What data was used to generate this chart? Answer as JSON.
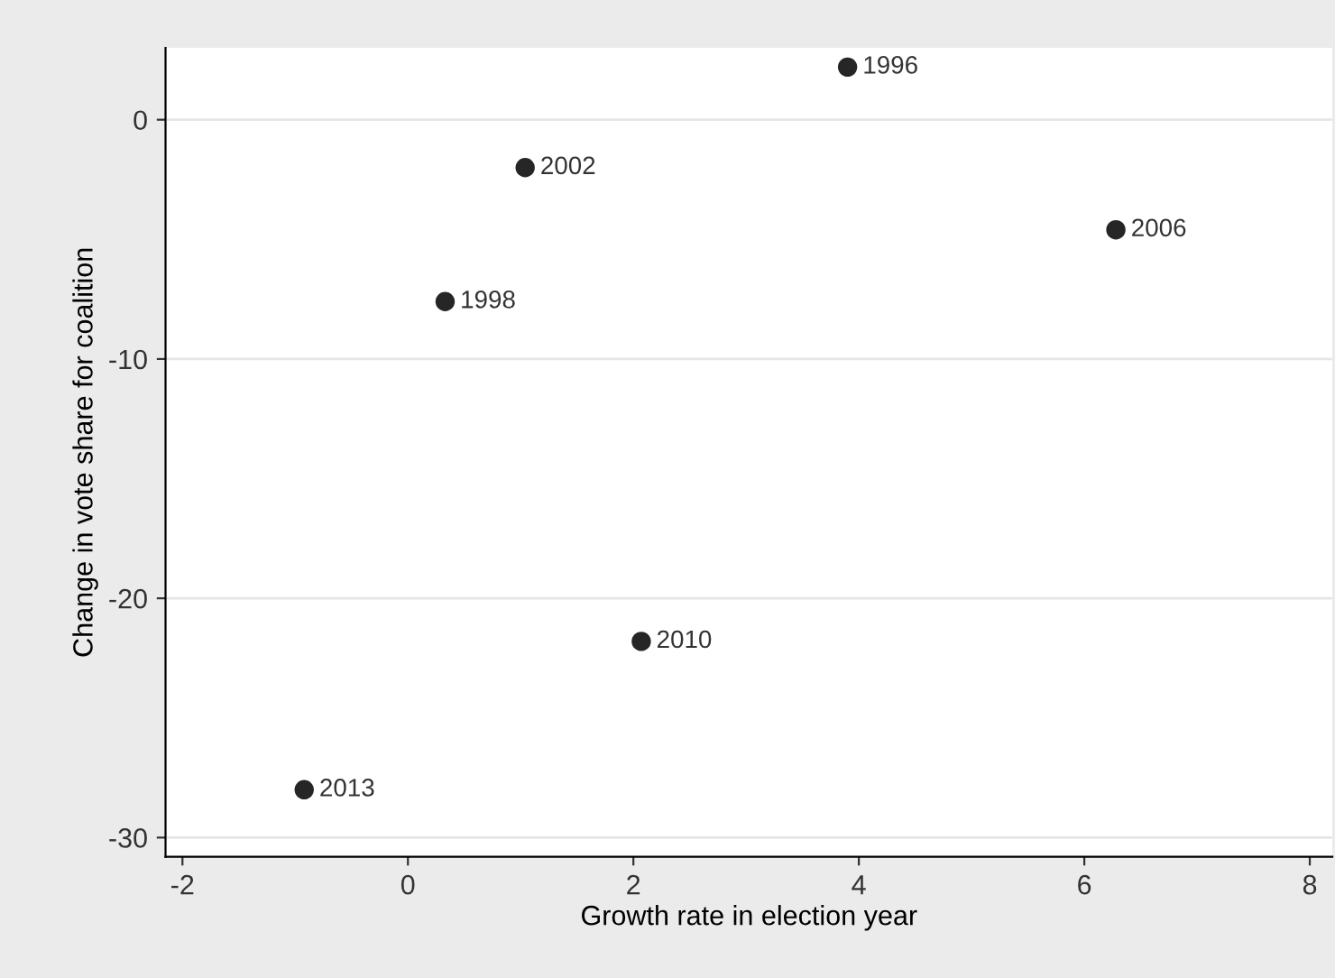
{
  "chart_data": {
    "type": "scatter",
    "xlabel": "Growth rate in election year",
    "ylabel": "Change in vote share for coalition",
    "x": [
      3.9,
      1.04,
      6.28,
      0.33,
      2.07,
      -0.92
    ],
    "values": [
      2.2,
      -2.0,
      -4.6,
      -7.6,
      -21.8,
      -28.0
    ],
    "color": "#262626",
    "marker": "circle",
    "annotations": [
      {
        "text": "1996",
        "x": 3.9,
        "y": 2.2
      },
      {
        "text": "2002",
        "x": 1.04,
        "y": -2.0
      },
      {
        "text": "2006",
        "x": 6.28,
        "y": -4.6
      },
      {
        "text": "1998",
        "x": 0.33,
        "y": -7.6
      },
      {
        "text": "2010",
        "x": 2.07,
        "y": -21.8
      },
      {
        "text": "2013",
        "x": -0.92,
        "y": -28.0
      }
    ],
    "xlim": [
      -2.15,
      8.2
    ],
    "xticks": [
      -2,
      0,
      2,
      4,
      6,
      8
    ],
    "ylim": [
      -30.8,
      3.0
    ],
    "yticks": [
      -30,
      -20,
      -10,
      0
    ],
    "grid": "y",
    "legend": false
  }
}
